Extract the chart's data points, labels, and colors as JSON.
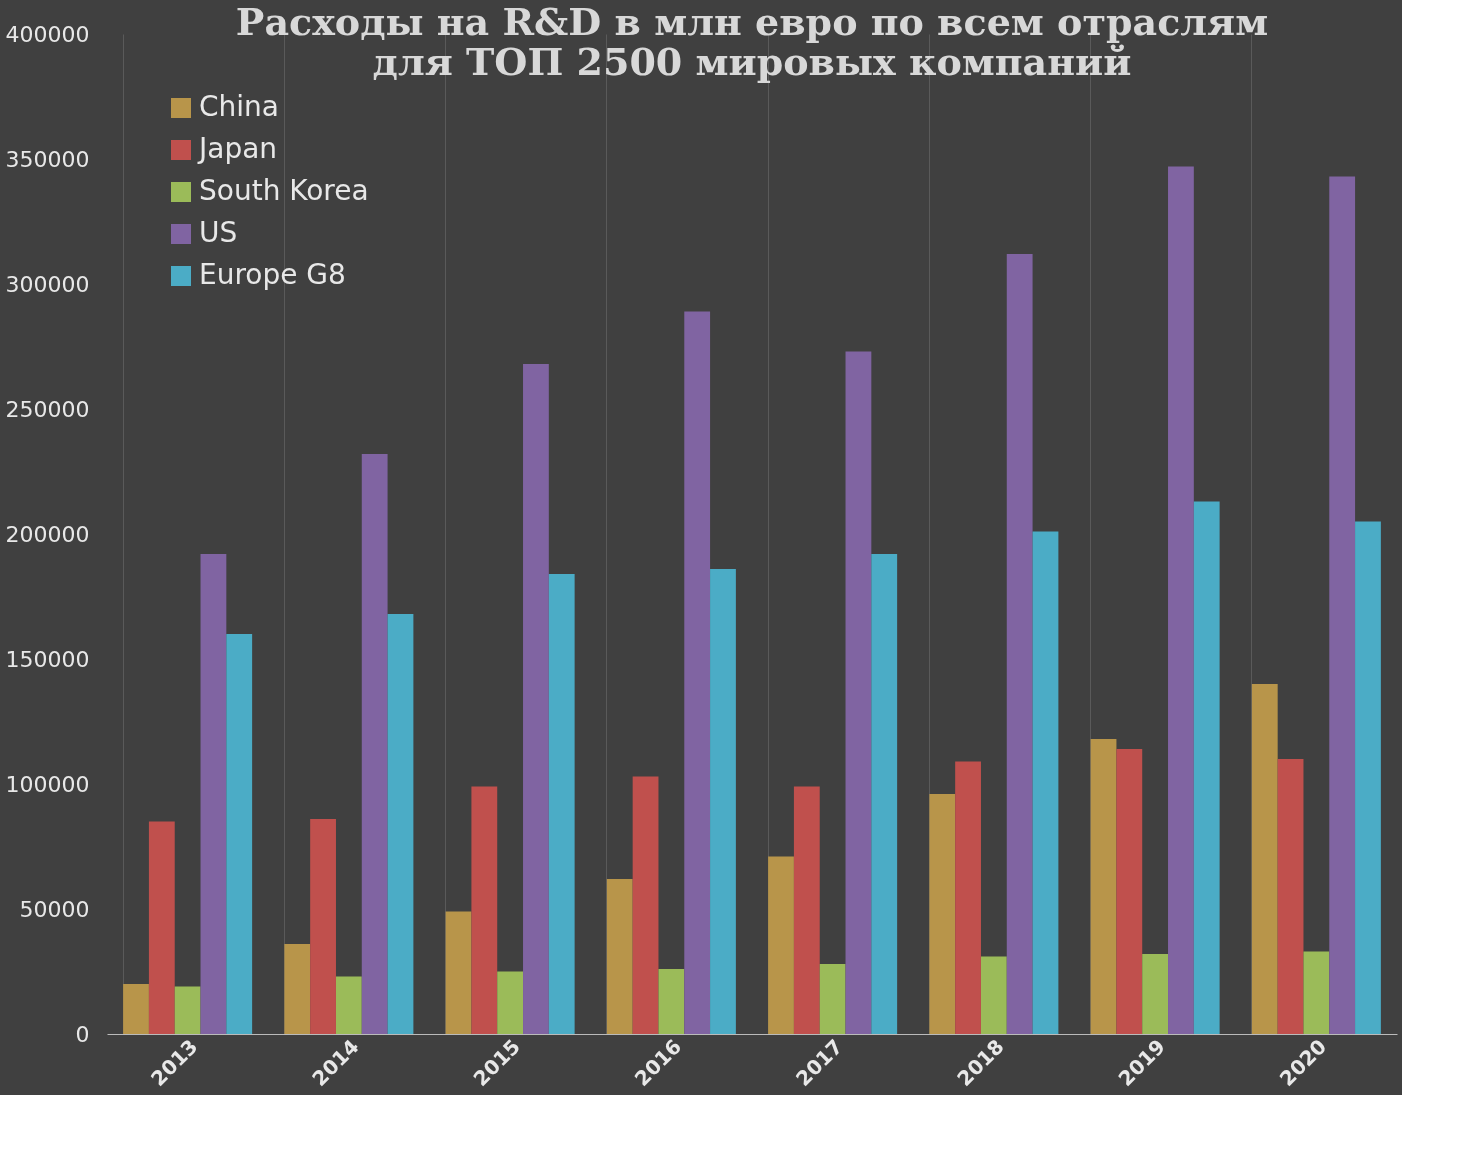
{
  "chart_data": {
    "type": "bar",
    "title": "Расходы на R&D в млн евро по всем отраслям для ТОП 2500 мировых компаний",
    "categories": [
      "2013",
      "2014",
      "2015",
      "2016",
      "2017",
      "2018",
      "2019",
      "2020"
    ],
    "series": [
      {
        "name": "China",
        "color": "#b8954a",
        "values": [
          20000,
          36000,
          49000,
          62000,
          71000,
          96000,
          118000,
          140000
        ]
      },
      {
        "name": "Japan",
        "color": "#c0504d",
        "values": [
          85000,
          86000,
          99000,
          103000,
          99000,
          109000,
          114000,
          110000
        ]
      },
      {
        "name": "South Korea",
        "color": "#9bbb59",
        "values": [
          19000,
          23000,
          25000,
          26000,
          28000,
          31000,
          32000,
          33000
        ]
      },
      {
        "name": "US",
        "color": "#8064a2",
        "values": [
          192000,
          232000,
          268000,
          289000,
          273000,
          312000,
          347000,
          343000
        ]
      },
      {
        "name": "Europe G8",
        "color": "#4bacc6",
        "values": [
          160000,
          168000,
          184000,
          186000,
          192000,
          201000,
          213000,
          205000
        ]
      }
    ],
    "ylim": [
      0,
      400000
    ],
    "yticks": [
      0,
      50000,
      100000,
      150000,
      200000,
      250000,
      300000,
      350000,
      400000
    ],
    "grid": "x",
    "legend": "top left"
  }
}
